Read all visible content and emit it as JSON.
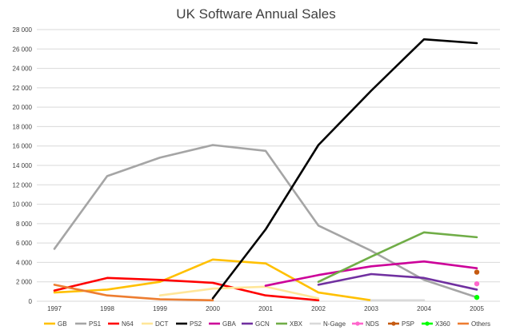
{
  "chart_data": {
    "type": "line",
    "title": "UK Software Annual Sales",
    "xlabel": "",
    "ylabel": "",
    "categories": [
      "1997",
      "1998",
      "1999",
      "2000",
      "2001",
      "2002",
      "2003",
      "2004",
      "2005"
    ],
    "ylim": [
      0,
      28000
    ],
    "yticks": [
      0,
      2000,
      4000,
      6000,
      8000,
      10000,
      12000,
      14000,
      16000,
      18000,
      20000,
      22000,
      24000,
      26000,
      28000
    ],
    "ytick_labels": [
      "0",
      "2 000",
      "4 000",
      "6 000",
      "8 000",
      "10 000",
      "12 000",
      "14 000",
      "16 000",
      "18 000",
      "20 000",
      "22 000",
      "24 000",
      "26 000",
      "28 000"
    ],
    "grid": true,
    "legend": "bottom",
    "series": [
      {
        "name": "GB",
        "color": "#FFC000",
        "values": [
          900,
          1200,
          2000,
          4300,
          3900,
          900,
          100,
          null,
          null
        ]
      },
      {
        "name": "PS1",
        "color": "#A5A5A5",
        "values": [
          5400,
          12900,
          14800,
          16100,
          15500,
          7800,
          5200,
          2200,
          400
        ]
      },
      {
        "name": "N64",
        "color": "#FF0000",
        "values": [
          1100,
          2400,
          2200,
          1900,
          600,
          100,
          null,
          null,
          null
        ]
      },
      {
        "name": "DCT",
        "color": "#FFE699",
        "values": [
          null,
          null,
          600,
          1300,
          1500,
          300,
          null,
          null,
          null
        ]
      },
      {
        "name": "PS2",
        "color": "#000000",
        "values": [
          null,
          null,
          null,
          300,
          7400,
          16100,
          21700,
          27000,
          26600
        ]
      },
      {
        "name": "GBA",
        "color": "#CC0099",
        "values": [
          null,
          null,
          null,
          null,
          1600,
          2700,
          3600,
          4100,
          3400
        ]
      },
      {
        "name": "GCN",
        "color": "#7030A0",
        "values": [
          null,
          null,
          null,
          null,
          null,
          1700,
          2800,
          2400,
          1200
        ]
      },
      {
        "name": "XBX",
        "color": "#70AD47",
        "values": [
          null,
          null,
          null,
          null,
          null,
          2000,
          4600,
          7100,
          6600
        ]
      },
      {
        "name": "N-Gage",
        "color": "#D9D9D9",
        "values": [
          null,
          null,
          null,
          null,
          null,
          null,
          100,
          100,
          null
        ]
      },
      {
        "name": "NDS",
        "color": "#FF66CC",
        "values": [
          null,
          null,
          null,
          null,
          null,
          null,
          null,
          null,
          1800
        ]
      },
      {
        "name": "PSP",
        "color": "#C55A11",
        "values": [
          null,
          null,
          null,
          null,
          null,
          null,
          null,
          null,
          3000
        ]
      },
      {
        "name": "X360",
        "color": "#00FF00",
        "values": [
          null,
          null,
          null,
          null,
          null,
          null,
          null,
          null,
          400
        ]
      },
      {
        "name": "Others",
        "color": "#ED7D31",
        "values": [
          1700,
          600,
          200,
          100,
          null,
          null,
          null,
          null,
          null
        ]
      }
    ]
  }
}
